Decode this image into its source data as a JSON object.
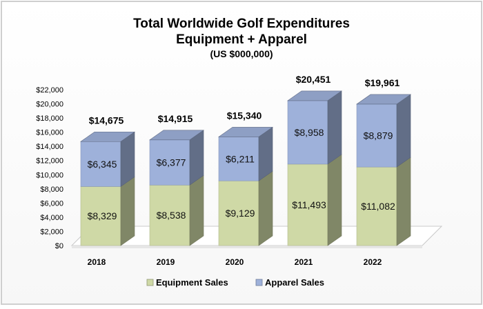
{
  "chart_data": {
    "type": "bar",
    "stacked": true,
    "title": "Total Worldwide  Golf Expenditures",
    "title_line2": "Equipment + Apparel",
    "subtitle": "(US $000,000)",
    "categories": [
      "2018",
      "2019",
      "2020",
      "2021",
      "2022"
    ],
    "series": [
      {
        "name": "Equipment Sales",
        "values": [
          8329,
          8538,
          9129,
          11493,
          11082
        ],
        "value_labels": [
          "$8,329",
          "$8,538",
          "$9,129",
          "$11,493",
          "$11,082"
        ],
        "color": "#cfd9a6"
      },
      {
        "name": "Apparel Sales",
        "values": [
          6345,
          6377,
          6211,
          8958,
          8879
        ],
        "value_labels": [
          "$6,345",
          "$6,377",
          "$6,211",
          "$8,958",
          "$8,879"
        ],
        "color": "#9eb1da"
      }
    ],
    "totals": [
      14675,
      14915,
      15340,
      20451,
      19961
    ],
    "total_labels": [
      "$14,675",
      "$14,915",
      "$15,340",
      "$20,451",
      "$19,961"
    ],
    "ylim": [
      0,
      22000
    ],
    "yticks": [
      0,
      2000,
      4000,
      6000,
      8000,
      10000,
      12000,
      14000,
      16000,
      18000,
      20000,
      22000
    ],
    "ytick_labels": [
      "$0",
      "$2,000",
      "$4,000",
      "$6,000",
      "$8,000",
      "$10,000",
      "$12,000",
      "$14,000",
      "$16,000",
      "$18,000",
      "$20,000",
      "$22,000"
    ],
    "legend_position": "bottom",
    "grid": false,
    "style": "3d"
  }
}
